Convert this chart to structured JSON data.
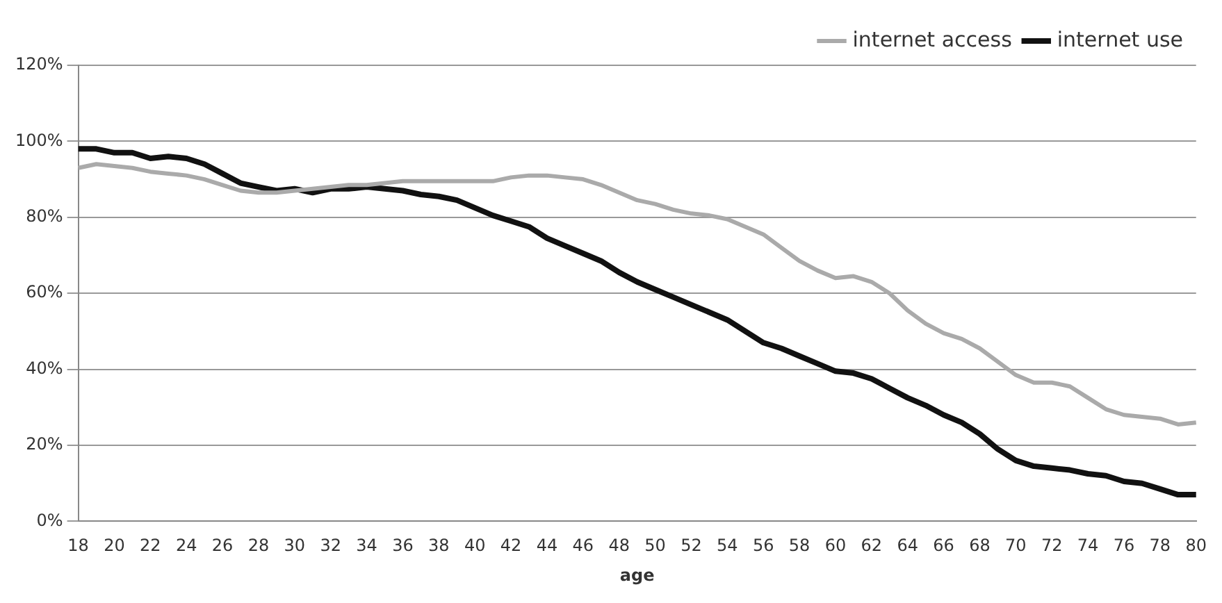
{
  "chart_data": {
    "type": "line",
    "xlabel": "age",
    "categories": [
      "18",
      null,
      "20",
      null,
      "22",
      null,
      "24",
      null,
      "26",
      null,
      "28",
      null,
      "30",
      null,
      "32",
      null,
      "34",
      null,
      "36",
      null,
      "38",
      null,
      "40",
      null,
      "42",
      null,
      "44",
      null,
      "46",
      null,
      "48",
      null,
      "50",
      null,
      "52",
      null,
      "54",
      null,
      "56",
      null,
      "58",
      null,
      "60",
      null,
      "62",
      null,
      "64",
      null,
      "66",
      null,
      "68",
      null,
      "70",
      null,
      "72",
      null,
      "74",
      null,
      "76",
      null,
      "78",
      null,
      "80"
    ],
    "series": [
      {
        "name": "internet access",
        "color": "#aaaaaa",
        "values": [
          93,
          94,
          93.5,
          93,
          92,
          91.5,
          91,
          90,
          88.5,
          87,
          86.5,
          86.5,
          87,
          87.5,
          88,
          88.5,
          88.5,
          89,
          89.5,
          89.5,
          89.5,
          89.5,
          89.5,
          89.5,
          90.5,
          91,
          91,
          90.5,
          90,
          88.5,
          86.5,
          84.5,
          83.5,
          82,
          81,
          80.5,
          79.5,
          77.5,
          75.5,
          72,
          68.5,
          66,
          64,
          64.5,
          63,
          60,
          55.5,
          52,
          49.5,
          48,
          45.5,
          42,
          38.5,
          36.5,
          36.5,
          35.5,
          32.5,
          29.5,
          28,
          27.5,
          27,
          25.5,
          26
        ]
      },
      {
        "name": "internet use",
        "color": "#111111",
        "values": [
          98,
          98,
          97,
          97,
          95.5,
          96,
          95.5,
          94,
          91.5,
          89,
          88,
          87,
          87.5,
          86.5,
          87.5,
          87.5,
          88,
          87.5,
          87,
          86,
          85.5,
          84.5,
          82.5,
          80.5,
          79,
          77.5,
          74.5,
          72.5,
          70.5,
          68.5,
          65.5,
          63,
          61,
          59,
          57,
          55,
          53,
          50,
          47,
          45.5,
          43.5,
          41.5,
          39.5,
          39,
          37.5,
          35,
          32.5,
          30.5,
          28,
          26,
          23,
          19,
          16,
          14.5,
          14,
          13.5,
          12.5,
          12,
          10.5,
          10,
          8.5,
          7,
          7
        ]
      }
    ],
    "ylim": [
      0,
      120
    ],
    "yticks": [
      {
        "value": 0,
        "label": "0%"
      },
      {
        "value": 20,
        "label": "20%"
      },
      {
        "value": 40,
        "label": "40%"
      },
      {
        "value": 60,
        "label": "60%"
      },
      {
        "value": 80,
        "label": "80%"
      },
      {
        "value": 100,
        "label": "100%"
      },
      {
        "value": 120,
        "label": "120%"
      }
    ],
    "grid": "y",
    "legend": "top right",
    "marker": "none",
    "line_style": "solid"
  }
}
